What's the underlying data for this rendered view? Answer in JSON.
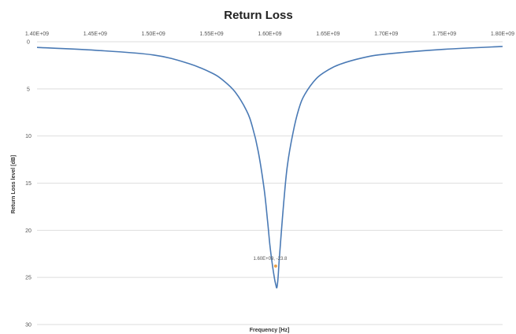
{
  "chart_data": {
    "type": "line",
    "title": "Return Loss",
    "xlabel": "Frequency [Hz]",
    "ylabel": "Return Loss level [dB]",
    "x_tick_labels": [
      "1.40E+09",
      "1.45E+09",
      "1.50E+09",
      "1.55E+09",
      "1.60E+09",
      "1.65E+09",
      "1.70E+09",
      "1.75E+09",
      "1.80E+09"
    ],
    "y_tick_labels": [
      "0",
      "5",
      "10",
      "15",
      "20",
      "25",
      "30"
    ],
    "xlim": [
      1400000000,
      1800000000
    ],
    "ylim": [
      0,
      30
    ],
    "y_inverted": true,
    "x_axis_position": "top",
    "grid": "horizontal",
    "series": [
      {
        "color": "#4a7ab5",
        "x": [
          1400000000,
          1450000000,
          1500000000,
          1530000000,
          1550000000,
          1560000000,
          1570000000,
          1580000000,
          1585000000,
          1590000000,
          1595000000,
          1598000000,
          1600000000,
          1602000000,
          1604000000,
          1605000000,
          1606000000,
          1607000000,
          1608000000,
          1610000000,
          1612000000,
          1615000000,
          1620000000,
          1625000000,
          1630000000,
          1640000000,
          1650000000,
          1660000000,
          1680000000,
          1700000000,
          1750000000,
          1800000000
        ],
        "values": [
          0.6,
          0.9,
          1.4,
          2.3,
          3.3,
          4.1,
          5.3,
          7.3,
          9.0,
          11.6,
          15.5,
          18.9,
          21.5,
          23.5,
          25.1,
          25.7,
          26.1,
          25.2,
          23.3,
          20.0,
          17.0,
          13.2,
          9.6,
          7.1,
          5.6,
          3.9,
          3.0,
          2.4,
          1.7,
          1.3,
          0.8,
          0.5
        ]
      }
    ],
    "annotations": [
      {
        "x": 1605000000,
        "y": 23.8,
        "text": "1.60E+09, -23.8",
        "color": "#e8a04b"
      }
    ]
  }
}
